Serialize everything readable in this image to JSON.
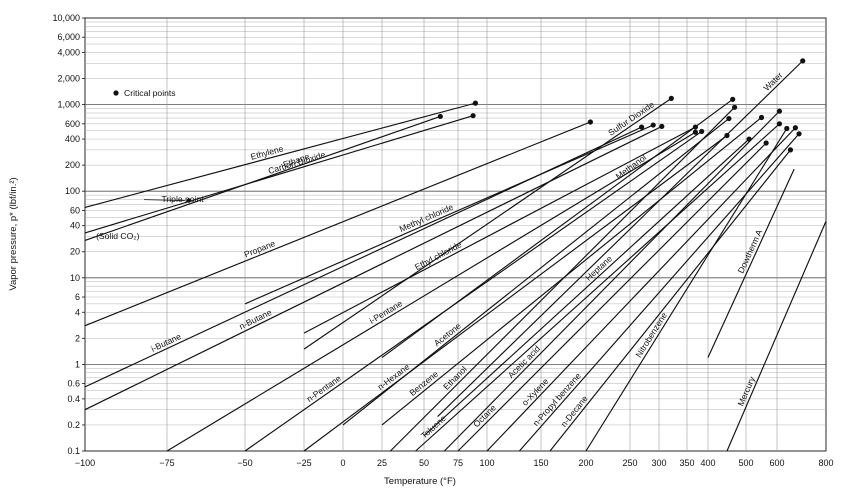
{
  "chart_data": {
    "type": "line",
    "title": "",
    "xlabel": "Temperature (°F)",
    "ylabel": "Vapor pressure, p* (lbf/in.²)",
    "xscale": "custom-cox-chart (non-linear temperature scale)",
    "yscale": "log",
    "xlim": [
      -100,
      800
    ],
    "ylim": [
      0.1,
      10000
    ],
    "grid": true,
    "x_ticks": [
      -100,
      -75,
      -50,
      -25,
      0,
      25,
      50,
      75,
      100,
      150,
      200,
      250,
      300,
      350,
      400,
      500,
      600,
      800
    ],
    "y_ticks": [
      {
        "value": 0.1,
        "label": "0.1"
      },
      {
        "value": 0.2,
        "label": "0.2"
      },
      {
        "value": 0.4,
        "label": "0.4"
      },
      {
        "value": 0.6,
        "label": "0.6"
      },
      {
        "value": 1,
        "label": "1"
      },
      {
        "value": 2,
        "label": "2"
      },
      {
        "value": 4,
        "label": "4"
      },
      {
        "value": 6,
        "label": "6"
      },
      {
        "value": 10,
        "label": "10"
      },
      {
        "value": 20,
        "label": "20"
      },
      {
        "value": 40,
        "label": "40"
      },
      {
        "value": 60,
        "label": "60"
      },
      {
        "value": 100,
        "label": "100"
      },
      {
        "value": 200,
        "label": "200"
      },
      {
        "value": 400,
        "label": "400"
      },
      {
        "value": 600,
        "label": "600"
      },
      {
        "value": 1000,
        "label": "1,000"
      },
      {
        "value": 2000,
        "label": "2,000"
      },
      {
        "value": 4000,
        "label": "4,000"
      },
      {
        "value": 6000,
        "label": "6,000"
      },
      {
        "value": 10000,
        "label": "10,000"
      }
    ],
    "legend": {
      "marker": "filled-circle",
      "label": "Critical points",
      "position": "top-left"
    },
    "series": [
      {
        "name": "Ethylene",
        "points": [
          [
            -100,
            65
          ],
          [
            90,
            1040
          ]
        ],
        "critical": [
          90,
          1040
        ]
      },
      {
        "name": "Carbon Dioxide",
        "points": [
          [
            -100,
            33
          ],
          [
            88,
            745
          ]
        ],
        "critical": [
          88,
          745
        ]
      },
      {
        "name": "Ethane",
        "points": [
          [
            -100,
            27
          ],
          [
            62,
            730
          ]
        ],
        "critical": [
          62,
          730
        ]
      },
      {
        "name": "Propane",
        "points": [
          [
            -100,
            2.8
          ],
          [
            205,
            630
          ]
        ],
        "critical": [
          205,
          630
        ]
      },
      {
        "name": "Sulfur Dioxide",
        "points": [
          [
            -25,
            1.5
          ],
          [
            322,
            1180
          ]
        ],
        "critical": [
          322,
          1180
        ]
      },
      {
        "name": "Methyl chloride",
        "points": [
          [
            -50,
            5
          ],
          [
            290,
            580
          ]
        ],
        "critical": [
          290,
          580
        ]
      },
      {
        "name": "i-Butane",
        "points": [
          [
            -100,
            0.55
          ],
          [
            270,
            550
          ]
        ],
        "critical": [
          270,
          550
        ]
      },
      {
        "name": "n-Butane",
        "points": [
          [
            -100,
            0.3
          ],
          [
            305,
            560
          ]
        ],
        "critical": [
          305,
          560
        ]
      },
      {
        "name": "Ethyl chloride",
        "points": [
          [
            -25,
            2.3
          ],
          [
            370,
            550
          ]
        ],
        "critical": [
          370,
          550
        ]
      },
      {
        "name": "i-Pentane",
        "points": [
          [
            -75,
            0.1
          ],
          [
            370,
            480
          ]
        ],
        "critical": [
          370,
          480
        ]
      },
      {
        "name": "n-Pentane",
        "points": [
          [
            -50,
            0.1
          ],
          [
            385,
            490
          ]
        ],
        "critical": [
          385,
          490
        ]
      },
      {
        "name": "Acetone",
        "points": [
          [
            0,
            0.2
          ],
          [
            455,
            690
          ]
        ],
        "critical": [
          455,
          690
        ]
      },
      {
        "name": "n-Hexane",
        "points": [
          [
            -25,
            0.1
          ],
          [
            450,
            440
          ]
        ],
        "critical": [
          450,
          440
        ]
      },
      {
        "name": "Benzene",
        "points": [
          [
            25,
            0.2
          ],
          [
            550,
            710
          ]
        ],
        "critical": [
          550,
          710
        ]
      },
      {
        "name": "Ethanol",
        "points": [
          [
            30,
            0.1
          ],
          [
            470,
            930
          ]
        ],
        "critical": [
          470,
          930
        ]
      },
      {
        "name": "Methanol",
        "points": [
          [
            25,
            1.2
          ],
          [
            465,
            1150
          ]
        ],
        "critical": [
          465,
          1150
        ]
      },
      {
        "name": "Toluene",
        "points": [
          [
            45,
            0.1
          ],
          [
            610,
            600
          ]
        ],
        "critical": [
          610,
          600
        ]
      },
      {
        "name": "Heptane",
        "points": [
          [
            50,
            0.15
          ],
          [
            510,
            400
          ]
        ],
        "critical": [
          510,
          400
        ]
      },
      {
        "name": "Acetic acid",
        "points": [
          [
            65,
            0.1
          ],
          [
            610,
            840
          ]
        ],
        "critical": [
          610,
          840
        ]
      },
      {
        "name": "Octane",
        "points": [
          [
            75,
            0.1
          ],
          [
            565,
            360
          ]
        ],
        "critical": [
          565,
          360
        ]
      },
      {
        "name": "o-Xylene",
        "points": [
          [
            100,
            0.1
          ],
          [
            675,
            540
          ]
        ],
        "critical": [
          675,
          540
        ]
      },
      {
        "name": "n-Propyl benzene",
        "points": [
          [
            130,
            0.1
          ],
          [
            690,
            460
          ]
        ],
        "critical": [
          690,
          460
        ]
      },
      {
        "name": "n-Decane",
        "points": [
          [
            160,
            0.1
          ],
          [
            655,
            300
          ]
        ],
        "critical": [
          655,
          300
        ]
      },
      {
        "name": "Nitrobenzene",
        "points": [
          [
            200,
            0.1
          ],
          [
            640,
            530
          ]
        ],
        "critical": [
          640,
          530
        ]
      },
      {
        "name": "Water",
        "points": [
          [
            60,
            0.25
          ],
          [
            705,
            3200
          ]
        ],
        "critical": [
          705,
          3200
        ]
      },
      {
        "name": "Dowtherm A",
        "points": [
          [
            400,
            1.2
          ],
          [
            670,
            180
          ]
        ],
        "critical": null
      },
      {
        "name": "Mercury",
        "points": [
          [
            450,
            0.1
          ],
          [
            800,
            45
          ]
        ],
        "critical": null
      }
    ],
    "annotations": [
      {
        "text": "Triple point",
        "x": -70,
        "y": 75
      },
      {
        "text": "(Solid CO₂)",
        "x": -90,
        "y": 28
      }
    ]
  }
}
